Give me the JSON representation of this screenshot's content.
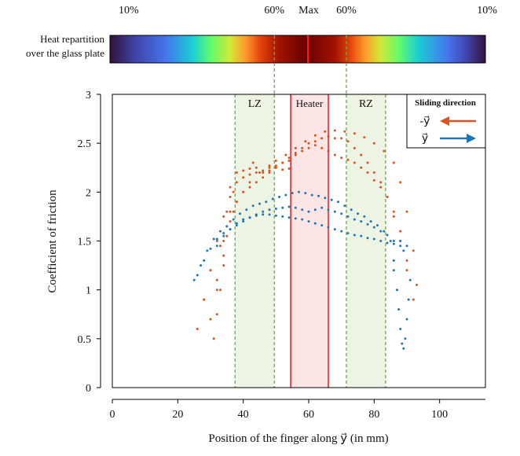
{
  "heat_bar": {
    "caption_lines": [
      "Heat repartition",
      "over the glass plate"
    ],
    "pct_labels": [
      {
        "text": "10%",
        "x": 5
      },
      {
        "text": "60%",
        "x": 49.5
      },
      {
        "text": "Max",
        "x": 60
      },
      {
        "text": "60%",
        "x": 71.5
      },
      {
        "text": "10%",
        "x": 114.5
      }
    ]
  },
  "chart_data": {
    "type": "scatter",
    "xlabel": "Position of the finger along y⃗ (in mm)",
    "ylabel": "Coefficient of friction",
    "xlim": [
      0,
      114
    ],
    "ylim": [
      0,
      3
    ],
    "x_ticks": [
      0,
      20,
      40,
      60,
      80,
      100
    ],
    "y_ticks": [
      0,
      0.5,
      1,
      1.5,
      2,
      2.5,
      3
    ],
    "grid": false,
    "zones": [
      {
        "label": "LZ",
        "x_range": [
          37.5,
          49.5
        ],
        "fill": "#eef4e4",
        "line": "#6aa84f"
      },
      {
        "label": "Heater",
        "x_range": [
          54.5,
          66
        ],
        "fill": "#fde5e5",
        "line": "#e8262a"
      },
      {
        "label": "RZ",
        "x_range": [
          71.5,
          83.5
        ],
        "fill": "#eef4e4",
        "line": "#6aa84f"
      }
    ],
    "legend": {
      "title": "Sliding direction",
      "placement": "top-right",
      "entries": [
        {
          "label": "-y⃗",
          "color": "#d9541f",
          "arrow": "left"
        },
        {
          "label": "y⃗",
          "color": "#1f77b4",
          "arrow": "right"
        }
      ]
    },
    "series": [
      {
        "color": "#d9541f",
        "x": [
          26,
          28,
          30,
          33,
          35,
          37,
          38,
          40,
          42,
          45,
          48,
          50,
          53,
          56,
          59,
          62,
          65,
          68,
          71,
          74,
          77,
          80,
          83,
          86,
          88,
          90,
          92,
          93
        ],
        "y": [
          0.6,
          0.9,
          1.2,
          1.45,
          1.65,
          1.8,
          1.9,
          2.0,
          2.1,
          2.2,
          2.27,
          2.32,
          2.38,
          2.45,
          2.52,
          2.58,
          2.62,
          2.63,
          2.62,
          2.6,
          2.56,
          2.5,
          2.42,
          2.3,
          2.1,
          1.8,
          1.4,
          1.05
        ]
      },
      {
        "color": "#d9541f",
        "x": [
          28,
          30,
          32,
          34,
          36,
          38,
          40,
          42,
          44,
          46,
          48,
          50,
          52,
          54,
          56,
          58,
          60,
          62,
          64,
          66,
          68,
          70,
          72,
          74,
          76,
          78,
          80,
          82,
          84,
          86,
          88,
          90
        ],
        "y": [
          0.9,
          1.2,
          1.5,
          1.75,
          1.95,
          2.1,
          2.15,
          2.18,
          2.2,
          2.22,
          2.25,
          2.27,
          2.3,
          2.32,
          2.38,
          2.42,
          2.45,
          2.48,
          2.45,
          2.42,
          2.38,
          2.35,
          2.33,
          2.3,
          2.25,
          2.2,
          2.12,
          2.05,
          1.95,
          1.8,
          1.6,
          1.3
        ]
      },
      {
        "color": "#d9541f",
        "x": [
          30,
          32,
          34,
          35,
          36,
          38,
          40,
          42,
          43,
          44,
          46,
          48,
          50,
          52,
          54
        ],
        "y": [
          0.7,
          1.1,
          1.5,
          1.8,
          2.05,
          2.2,
          2.22,
          2.24,
          2.3,
          2.25,
          2.2,
          2.22,
          2.25,
          2.23,
          2.24
        ]
      },
      {
        "color": "#d9541f",
        "x": [
          32,
          34,
          36,
          38,
          40,
          42,
          44,
          46,
          48,
          50,
          52,
          54,
          56,
          58,
          60,
          62,
          64,
          66,
          68,
          70,
          72,
          74,
          76,
          78,
          80,
          82,
          84,
          86,
          88,
          90,
          92
        ],
        "y": [
          1.0,
          1.35,
          1.7,
          1.9,
          2.0,
          2.05,
          2.1,
          2.15,
          2.2,
          2.25,
          2.3,
          2.35,
          2.4,
          2.45,
          2.5,
          2.52,
          2.55,
          2.57,
          2.55,
          2.55,
          2.52,
          2.45,
          2.38,
          2.3,
          2.2,
          2.1,
          1.95,
          1.75,
          1.5,
          1.2,
          0.9
        ]
      },
      {
        "color": "#d9541f",
        "x": [
          31,
          32,
          33,
          34,
          35,
          36,
          37
        ],
        "y": [
          0.5,
          0.75,
          1.0,
          1.25,
          1.55,
          1.8,
          2.0
        ]
      },
      {
        "color": "#1f77b4",
        "x": [
          25,
          27,
          29,
          31,
          33,
          35,
          37,
          39,
          41,
          43,
          45,
          47,
          49,
          51,
          53,
          55,
          57,
          59,
          61,
          63,
          65,
          67,
          69,
          71,
          73,
          75,
          77,
          79,
          81,
          83,
          85,
          86
        ],
        "y": [
          1.1,
          1.25,
          1.4,
          1.52,
          1.6,
          1.65,
          1.72,
          1.78,
          1.82,
          1.86,
          1.88,
          1.9,
          1.93,
          1.95,
          1.97,
          1.99,
          2.0,
          1.99,
          1.97,
          1.96,
          1.94,
          1.92,
          1.9,
          1.86,
          1.82,
          1.78,
          1.75,
          1.7,
          1.66,
          1.6,
          1.5,
          1.3
        ]
      },
      {
        "color": "#1f77b4",
        "x": [
          26,
          28,
          30,
          32,
          34,
          36,
          38,
          40,
          42,
          44,
          46,
          48,
          50,
          52,
          54,
          56,
          58,
          60,
          62,
          64,
          66,
          68,
          70,
          72,
          74,
          76,
          78,
          80,
          82,
          84,
          86,
          88,
          89
        ],
        "y": [
          1.15,
          1.3,
          1.42,
          1.52,
          1.58,
          1.62,
          1.66,
          1.7,
          1.74,
          1.77,
          1.8,
          1.82,
          1.83,
          1.84,
          1.85,
          1.84,
          1.82,
          1.8,
          1.82,
          1.84,
          1.82,
          1.8,
          1.78,
          1.75,
          1.72,
          1.7,
          1.67,
          1.64,
          1.6,
          1.56,
          1.5,
          1.45,
          1.4
        ]
      },
      {
        "color": "#1f77b4",
        "x": [
          32,
          34,
          36,
          38,
          40,
          42,
          44,
          46,
          48,
          50,
          52,
          54,
          56,
          58,
          60,
          62,
          64,
          66,
          68,
          70,
          72,
          74,
          76,
          78,
          80,
          82,
          84,
          86,
          88,
          90
        ],
        "y": [
          1.45,
          1.55,
          1.62,
          1.68,
          1.72,
          1.74,
          1.76,
          1.77,
          1.77,
          1.76,
          1.75,
          1.74,
          1.73,
          1.72,
          1.7,
          1.68,
          1.66,
          1.64,
          1.62,
          1.6,
          1.58,
          1.56,
          1.55,
          1.53,
          1.52,
          1.5,
          1.48,
          1.47,
          1.5,
          1.45
        ]
      },
      {
        "color": "#1f77b4",
        "x": [
          86,
          87,
          87.5,
          88,
          88.5,
          89,
          89.5,
          90,
          90.5,
          91
        ],
        "y": [
          1.2,
          1.0,
          0.8,
          0.6,
          0.45,
          0.4,
          0.5,
          0.7,
          0.9,
          1.1
        ]
      }
    ]
  }
}
